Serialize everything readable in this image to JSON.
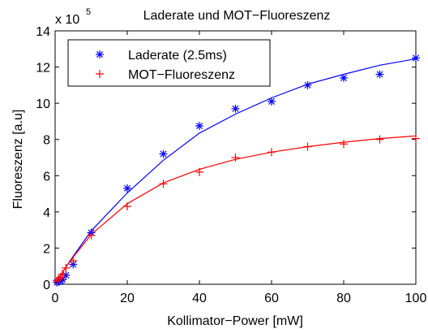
{
  "chart_data": {
    "type": "scatter",
    "title": "Laderate und MOT−Fluoreszenz",
    "xlabel": "Kollimator−Power [mW]",
    "ylabel": "Fluoreszenz [a.u]",
    "xlim": [
      0,
      100
    ],
    "ylim": [
      0,
      14
    ],
    "xticks": [
      0,
      20,
      40,
      60,
      80,
      100
    ],
    "yticks": [
      0,
      2,
      4,
      6,
      8,
      10,
      12,
      14
    ],
    "y_multiplier_base": "x 10",
    "y_multiplier_exp": "5",
    "grid": false,
    "legend_position": "top-left",
    "series": [
      {
        "name": "Laderate (2.5ms)",
        "color": "#0000ff",
        "marker": "asterisk",
        "x": [
          0.5,
          1,
          1.5,
          2,
          3,
          5,
          10,
          20,
          30,
          40,
          50,
          60,
          70,
          80,
          90,
          100
        ],
        "y": [
          0.1,
          0.15,
          0.2,
          0.25,
          0.5,
          1.1,
          2.85,
          5.3,
          7.2,
          8.75,
          9.7,
          10.1,
          11.0,
          11.4,
          11.6,
          12.5
        ]
      },
      {
        "name": "MOT−Fluoreszenz",
        "color": "#ff0000",
        "marker": "plus",
        "x": [
          0.5,
          1,
          1.5,
          2,
          3,
          5,
          10,
          20,
          30,
          40,
          50,
          60,
          70,
          80,
          90,
          100
        ],
        "y": [
          0.2,
          0.3,
          0.4,
          0.55,
          0.9,
          1.3,
          2.7,
          4.3,
          5.55,
          6.2,
          7.0,
          7.3,
          7.6,
          7.75,
          8.0,
          8.05
        ]
      }
    ],
    "fit_curves": [
      {
        "color": "#0000ff",
        "x": [
          0,
          1,
          2,
          3,
          5,
          10,
          20,
          30,
          40,
          50,
          60,
          70,
          80,
          90,
          100
        ],
        "y": [
          0,
          0.35,
          0.65,
          0.95,
          1.55,
          2.95,
          5.05,
          6.85,
          8.35,
          9.4,
          10.3,
          11.05,
          11.6,
          12.1,
          12.45
        ]
      },
      {
        "color": "#ff0000",
        "x": [
          0,
          1,
          2,
          3,
          5,
          10,
          20,
          30,
          40,
          50,
          60,
          70,
          80,
          90,
          100
        ],
        "y": [
          0,
          0.35,
          0.65,
          0.95,
          1.5,
          2.75,
          4.45,
          5.6,
          6.35,
          6.9,
          7.3,
          7.6,
          7.85,
          8.05,
          8.2
        ]
      }
    ]
  }
}
